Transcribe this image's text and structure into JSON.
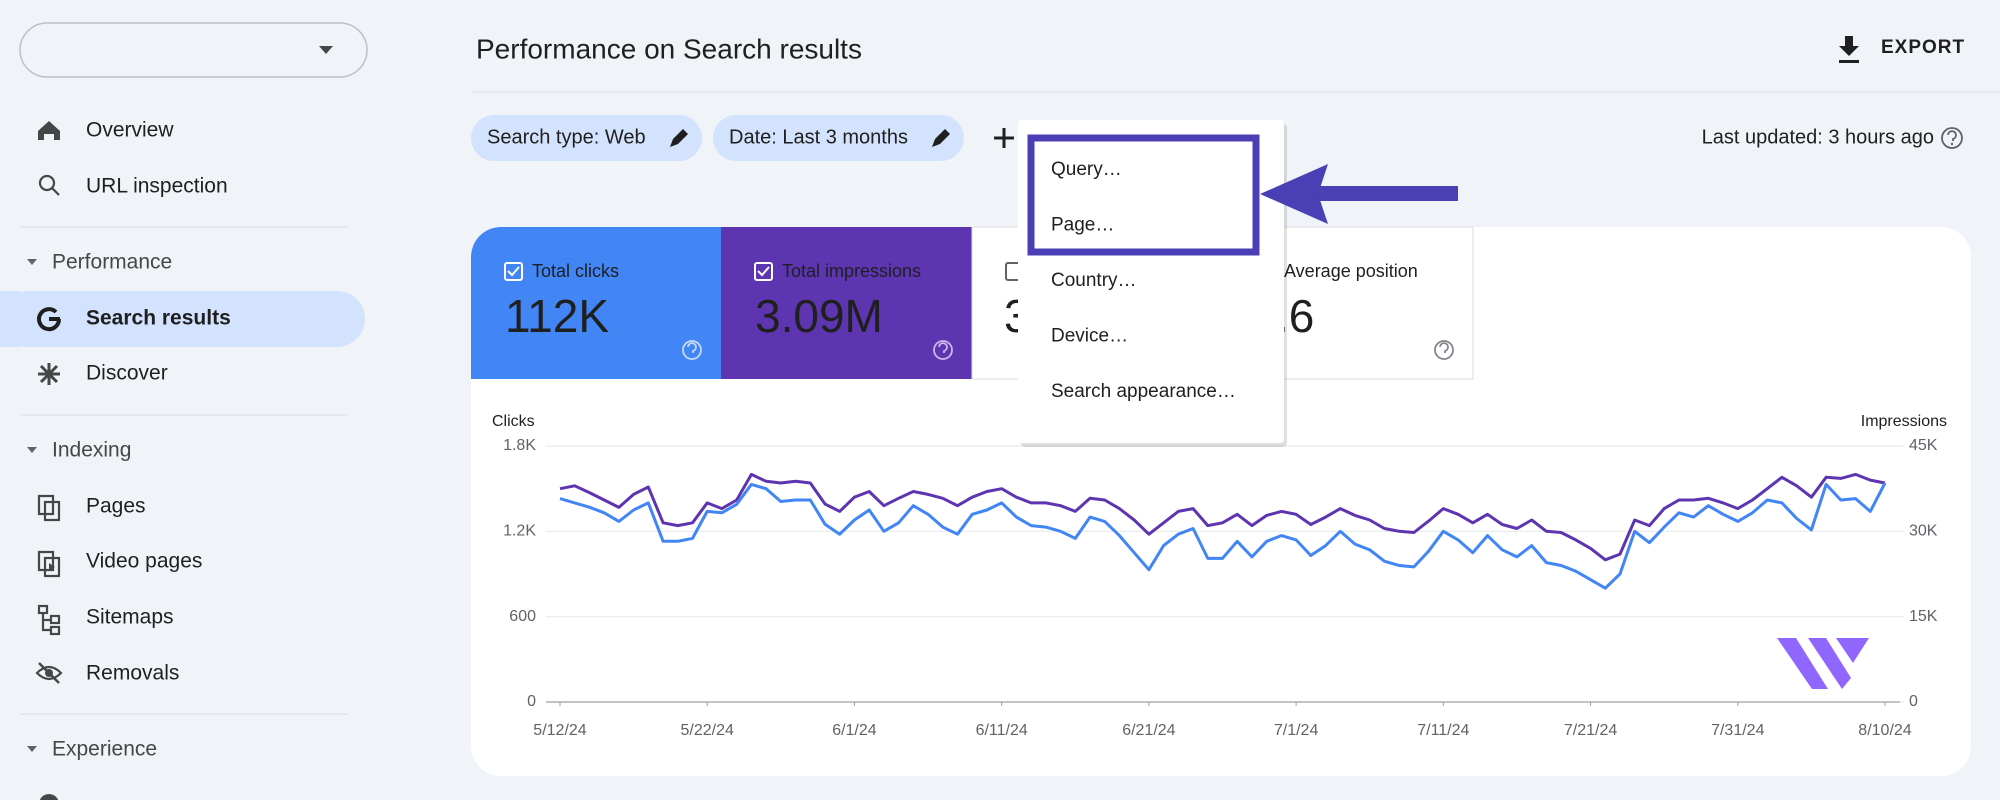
{
  "sidebar": {
    "top": [
      "Overview",
      "URL inspection"
    ],
    "sections": [
      {
        "title": "Performance",
        "items": [
          "Search results",
          "Discover"
        ]
      },
      {
        "title": "Indexing",
        "items": [
          "Pages",
          "Video pages",
          "Sitemaps",
          "Removals"
        ]
      },
      {
        "title": "Experience"
      }
    ]
  },
  "header": {
    "title": "Performance on Search results",
    "export": "EXPORT"
  },
  "filters": {
    "chips": [
      "Search type: Web",
      "Date: Last 3 months"
    ],
    "last_updated": "Last updated: 3 hours ago"
  },
  "menu": {
    "items": [
      "Query…",
      "Page…",
      "Country…",
      "Device…",
      "Search appearance…"
    ]
  },
  "metrics": [
    {
      "label": "Total clicks",
      "value": "112K"
    },
    {
      "label": "Total impressions",
      "value": "3.09M"
    },
    {
      "value": "3"
    },
    {
      "label": "Average position",
      "value": ".6"
    }
  ],
  "chart_data": {
    "type": "line",
    "x": [
      "5/12/24",
      "5/13/24",
      "5/14/24",
      "5/15/24",
      "5/16/24",
      "5/17/24",
      "5/18/24",
      "5/19/24",
      "5/20/24",
      "5/21/24",
      "5/22/24",
      "5/23/24",
      "5/24/24",
      "5/25/24",
      "5/26/24",
      "5/27/24",
      "5/28/24",
      "5/29/24",
      "5/30/24",
      "5/31/24",
      "6/1/24",
      "6/2/24",
      "6/3/24",
      "6/4/24",
      "6/5/24",
      "6/6/24",
      "6/7/24",
      "6/8/24",
      "6/9/24",
      "6/10/24",
      "6/11/24",
      "6/12/24",
      "6/13/24",
      "6/14/24",
      "6/15/24",
      "6/16/24",
      "6/17/24",
      "6/18/24",
      "6/19/24",
      "6/20/24",
      "6/21/24",
      "6/22/24",
      "6/23/24",
      "6/24/24",
      "6/25/24",
      "6/26/24",
      "6/27/24",
      "6/28/24",
      "6/29/24",
      "6/30/24",
      "7/1/24",
      "7/2/24",
      "7/3/24",
      "7/4/24",
      "7/5/24",
      "7/6/24",
      "7/7/24",
      "7/8/24",
      "7/9/24",
      "7/10/24",
      "7/11/24",
      "7/12/24",
      "7/13/24",
      "7/14/24",
      "7/15/24",
      "7/16/24",
      "7/17/24",
      "7/18/24",
      "7/19/24",
      "7/20/24",
      "7/21/24",
      "7/22/24",
      "7/23/24",
      "7/24/24",
      "7/25/24",
      "7/26/24",
      "7/27/24",
      "7/28/24",
      "7/29/24",
      "7/30/24",
      "7/31/24",
      "8/1/24",
      "8/2/24",
      "8/3/24",
      "8/4/24",
      "8/5/24",
      "8/6/24",
      "8/7/24",
      "8/8/24",
      "8/9/24",
      "8/10/24"
    ],
    "series": [
      {
        "name": "Clicks",
        "color": "#4285f4",
        "values": [
          1430,
          1400,
          1370,
          1330,
          1270,
          1350,
          1400,
          1130,
          1130,
          1150,
          1340,
          1330,
          1390,
          1530,
          1500,
          1410,
          1420,
          1420,
          1250,
          1180,
          1280,
          1350,
          1200,
          1260,
          1380,
          1320,
          1230,
          1180,
          1320,
          1350,
          1400,
          1300,
          1240,
          1230,
          1200,
          1150,
          1300,
          1270,
          1170,
          1050,
          930,
          1100,
          1180,
          1220,
          1010,
          1010,
          1130,
          1020,
          1130,
          1170,
          1140,
          1030,
          1100,
          1200,
          1110,
          1070,
          990,
          960,
          950,
          1060,
          1200,
          1140,
          1050,
          1170,
          1070,
          1020,
          1100,
          980,
          960,
          920,
          860,
          800,
          900,
          1200,
          1120,
          1230,
          1330,
          1300,
          1380,
          1320,
          1270,
          1330,
          1420,
          1400,
          1290,
          1210,
          1530,
          1420,
          1430,
          1340,
          1540
        ]
      },
      {
        "name": "Impressions",
        "color": "#5e35b1",
        "axis": "y2",
        "values": [
          37500,
          38000,
          36800,
          35500,
          34200,
          36500,
          37800,
          31500,
          31000,
          31500,
          35000,
          34000,
          35500,
          40000,
          38800,
          38500,
          38800,
          38500,
          34800,
          33500,
          36000,
          37000,
          34500,
          35800,
          37000,
          36500,
          35800,
          34500,
          36000,
          37000,
          37500,
          36000,
          35000,
          35000,
          34500,
          33500,
          35800,
          35500,
          34000,
          32000,
          29500,
          31500,
          33500,
          34000,
          31000,
          31500,
          33000,
          31000,
          32800,
          33500,
          33000,
          31200,
          32500,
          34000,
          32800,
          32000,
          30500,
          30000,
          29800,
          31800,
          34000,
          33000,
          31500,
          33000,
          31200,
          30500,
          32000,
          30000,
          29800,
          28500,
          27000,
          25000,
          26000,
          32000,
          31000,
          34000,
          35500,
          35500,
          35800,
          35000,
          34000,
          35500,
          37500,
          39500,
          38000,
          36000,
          39500,
          39300,
          40000,
          39000,
          38500
        ]
      }
    ],
    "ylim": [
      0,
      1800
    ],
    "yticks": [
      0,
      600,
      {
        "value": 1200,
        "label": "1.2K"
      },
      {
        "value": 1800,
        "label": "1.8K"
      }
    ],
    "y2lim": [
      0,
      45000
    ],
    "y2ticks": [
      0,
      {
        "value": 15000,
        "label": "15K"
      },
      {
        "value": 30000,
        "label": "30K"
      },
      {
        "value": 45000,
        "label": "45K"
      }
    ],
    "xticks": [
      "5/12/24",
      "5/22/24",
      "6/1/24",
      "6/11/24",
      "6/21/24",
      "7/1/24",
      "7/11/24",
      "7/21/24",
      "7/31/24",
      "8/10/24"
    ],
    "grid": true
  }
}
